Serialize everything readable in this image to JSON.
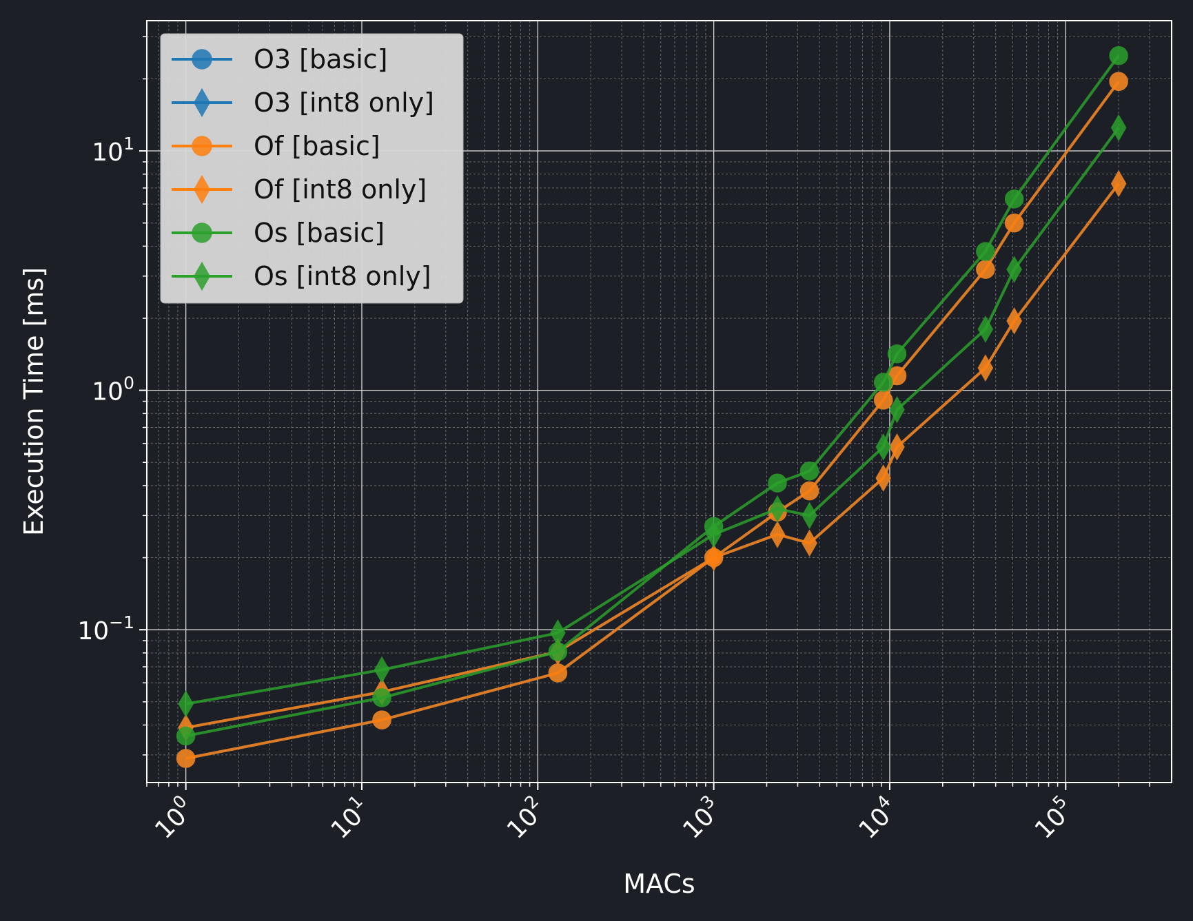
{
  "chart_data": {
    "type": "line",
    "xlabel": "MACs",
    "ylabel": "Execution Time [ms]",
    "xscale": "log",
    "yscale": "log",
    "xlim": [
      0.6,
      400000
    ],
    "ylim": [
      0.023,
      35
    ],
    "grid": true,
    "legend_position": "top-left",
    "x_ticks": [
      {
        "value": 1,
        "label": "10^0"
      },
      {
        "value": 10,
        "label": "10^1"
      },
      {
        "value": 100,
        "label": "10^2"
      },
      {
        "value": 1000,
        "label": "10^3"
      },
      {
        "value": 10000,
        "label": "10^4"
      },
      {
        "value": 100000,
        "label": "10^5"
      }
    ],
    "y_ticks": [
      {
        "value": 0.1,
        "label": "10^−1"
      },
      {
        "value": 1,
        "label": "10^0"
      },
      {
        "value": 10,
        "label": "10^1"
      }
    ],
    "series": [
      {
        "name": "O3 [basic]",
        "color": "#1f77b4",
        "marker": "circle",
        "points": [
          [
            1,
            0.029
          ],
          [
            13,
            0.042
          ],
          [
            130,
            0.066
          ],
          [
            1000,
            0.2
          ],
          [
            2300,
            0.31
          ],
          [
            3500,
            0.38
          ],
          [
            9200,
            0.91
          ],
          [
            11000,
            1.15
          ],
          [
            35000,
            3.2
          ],
          [
            51000,
            5.0
          ],
          [
            200000,
            19.5
          ]
        ]
      },
      {
        "name": "O3 [int8 only]",
        "color": "#1f77b4",
        "marker": "diamond",
        "points": [
          [
            1,
            0.039
          ],
          [
            13,
            0.055
          ],
          [
            130,
            0.081
          ],
          [
            1000,
            0.2
          ],
          [
            2300,
            0.25
          ],
          [
            3500,
            0.23
          ],
          [
            9200,
            0.43
          ],
          [
            11000,
            0.58
          ],
          [
            35000,
            1.24
          ],
          [
            51000,
            1.95
          ],
          [
            200000,
            7.3
          ]
        ]
      },
      {
        "name": "Of [basic]",
        "color": "#ff7f0e",
        "marker": "circle",
        "points": [
          [
            1,
            0.029
          ],
          [
            13,
            0.042
          ],
          [
            130,
            0.066
          ],
          [
            1000,
            0.2
          ],
          [
            2300,
            0.31
          ],
          [
            3500,
            0.38
          ],
          [
            9200,
            0.91
          ],
          [
            11000,
            1.15
          ],
          [
            35000,
            3.2
          ],
          [
            51000,
            5.0
          ],
          [
            200000,
            19.5
          ]
        ]
      },
      {
        "name": "Of [int8 only]",
        "color": "#ff7f0e",
        "marker": "diamond",
        "points": [
          [
            1,
            0.039
          ],
          [
            13,
            0.055
          ],
          [
            130,
            0.081
          ],
          [
            1000,
            0.2
          ],
          [
            2300,
            0.25
          ],
          [
            3500,
            0.23
          ],
          [
            9200,
            0.43
          ],
          [
            11000,
            0.58
          ],
          [
            35000,
            1.24
          ],
          [
            51000,
            1.95
          ],
          [
            200000,
            7.3
          ]
        ]
      },
      {
        "name": "Os [basic]",
        "color": "#2ca02c",
        "marker": "circle",
        "points": [
          [
            1,
            0.036
          ],
          [
            13,
            0.052
          ],
          [
            130,
            0.081
          ],
          [
            1000,
            0.27
          ],
          [
            2300,
            0.41
          ],
          [
            3500,
            0.46
          ],
          [
            9200,
            1.08
          ],
          [
            11000,
            1.42
          ],
          [
            35000,
            3.8
          ],
          [
            51000,
            6.3
          ],
          [
            200000,
            25
          ]
        ]
      },
      {
        "name": "Os [int8 only]",
        "color": "#2ca02c",
        "marker": "diamond",
        "points": [
          [
            1,
            0.049
          ],
          [
            13,
            0.068
          ],
          [
            130,
            0.097
          ],
          [
            1000,
            0.25
          ],
          [
            2300,
            0.32
          ],
          [
            3500,
            0.3
          ],
          [
            9200,
            0.58
          ],
          [
            11000,
            0.83
          ],
          [
            35000,
            1.8
          ],
          [
            51000,
            3.2
          ],
          [
            200000,
            12.5
          ]
        ]
      }
    ]
  }
}
